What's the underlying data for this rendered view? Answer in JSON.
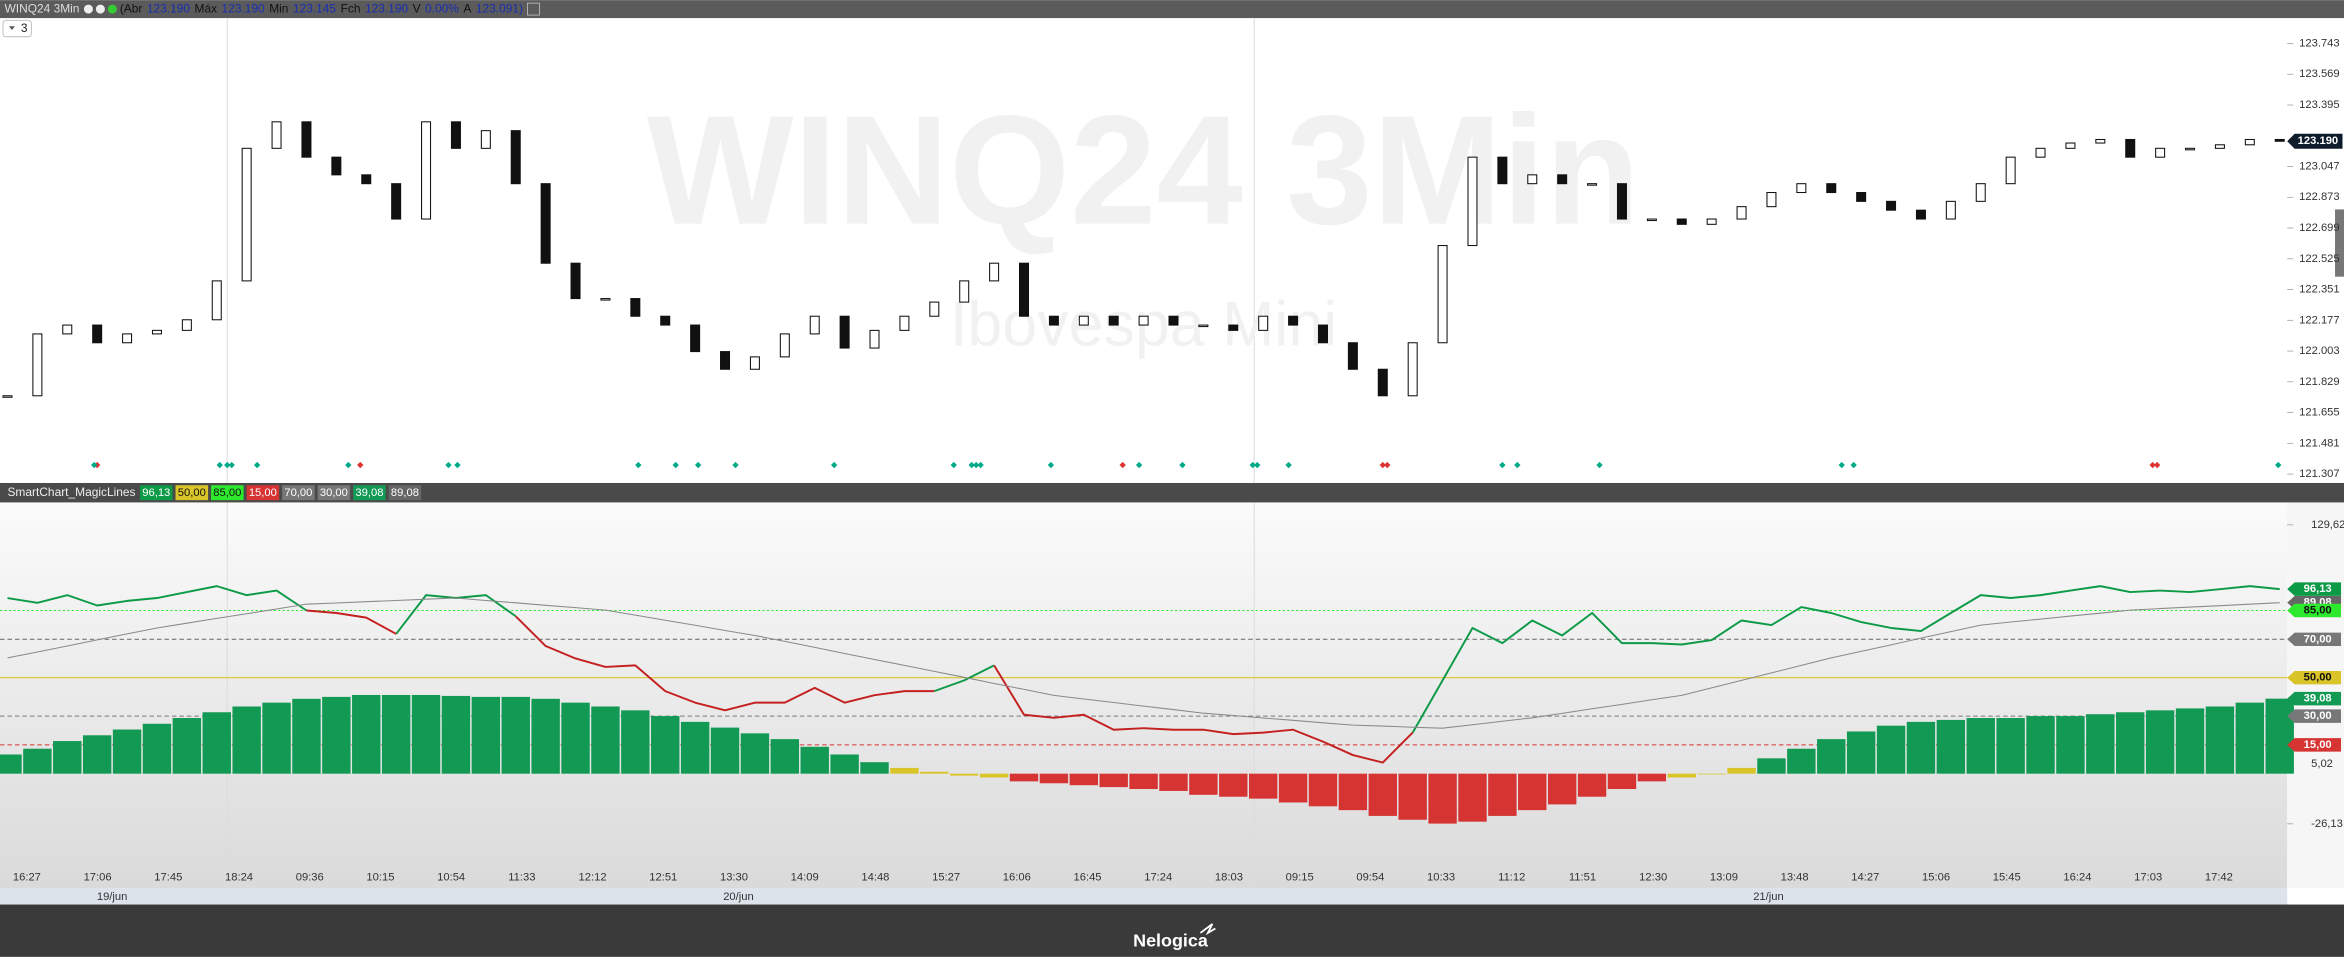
{
  "header": {
    "symbol": "WINQ24 3Min",
    "fields": [
      {
        "label": "(Abr",
        "value": "123.190"
      },
      {
        "label": "Máx",
        "value": "123.190"
      },
      {
        "label": "Min",
        "value": "123.145"
      },
      {
        "label": "Fch",
        "value": "123.190"
      },
      {
        "label": "V",
        "value": "0.00%"
      },
      {
        "label": "A",
        "value": "123.091)"
      }
    ]
  },
  "toolbar": {
    "period": "3"
  },
  "price_chart": {
    "type": "candlestick",
    "watermark": "WINQ24 3Min",
    "subtitle": "Ibovespa Mini",
    "close": [
      121.75,
      122.1,
      122.15,
      122.05,
      122.1,
      122.12,
      122.18,
      122.4,
      123.15,
      123.3,
      123.1,
      123.0,
      122.95,
      122.75,
      123.3,
      123.15,
      123.25,
      122.95,
      122.5,
      122.3,
      122.3,
      122.2,
      122.15,
      122.0,
      121.9,
      121.97,
      122.1,
      122.2,
      122.02,
      122.12,
      122.2,
      122.28,
      122.4,
      122.5,
      122.2,
      122.15,
      122.2,
      122.15,
      122.2,
      122.15,
      122.15,
      122.12,
      122.2,
      122.15,
      122.05,
      121.9,
      121.75,
      122.05,
      122.6,
      123.1,
      122.95,
      123.0,
      122.95,
      122.95,
      122.75,
      122.75,
      122.72,
      122.75,
      122.82,
      122.9,
      122.95,
      122.9,
      122.85,
      122.8,
      122.75,
      122.85,
      122.95,
      123.1,
      123.15,
      123.18,
      123.2,
      123.1,
      123.15,
      123.15,
      123.17,
      123.2,
      123.19
    ],
    "ylim": [
      121.265,
      123.887
    ],
    "yticks": [
      123.743,
      123.569,
      123.395,
      123.047,
      122.873,
      122.699,
      122.525,
      122.351,
      122.177,
      122.003,
      121.829,
      121.655,
      121.481,
      121.307
    ],
    "last_price": {
      "value": 123.19,
      "label": "123.190"
    },
    "up_color": "#ffffff",
    "down_color": "#111111"
  },
  "indicator": {
    "type": "line",
    "name": "SmartChart_MagicLines",
    "ylim": [
      -48.7,
      141.3
    ],
    "yticks": [
      {
        "value": 129.62,
        "label": "129,62"
      },
      {
        "value": 5.02,
        "label": "5,02"
      },
      {
        "value": -26.13,
        "label": "-26,13"
      }
    ],
    "readouts": [
      {
        "value": 96.13,
        "label": "96,13",
        "color": "#0c9a47",
        "text_color": "#ffffff"
      },
      {
        "value": 50,
        "label": "50,00",
        "color": "#d9c42a",
        "text_color": "#111111",
        "line": "solid"
      },
      {
        "value": 85,
        "label": "85,00",
        "color": "#2ee82e",
        "text_color": "#111111",
        "line": "dotted"
      },
      {
        "value": 15,
        "label": "15,00",
        "color": "#d63333",
        "text_color": "#ffffff",
        "line": "dashed"
      },
      {
        "value": 70,
        "label": "70,00",
        "color": "#777777",
        "text_color": "#ffffff",
        "line": "dashed"
      },
      {
        "value": 30,
        "label": "30,00",
        "color": "#777777",
        "text_color": "#ffffff",
        "line": "dashed"
      },
      {
        "value": 39.08,
        "label": "39,08",
        "color": "#129a55",
        "text_color": "#ffffff"
      },
      {
        "value": 89.08,
        "label": "89,08",
        "color": "#666666",
        "text_color": "#ffffff"
      }
    ],
    "histogram": [
      {
        "color": "#129a55",
        "values": [
          10,
          13,
          17,
          20,
          23,
          26,
          29,
          32,
          35,
          37,
          39,
          40,
          41,
          41,
          41,
          40.5,
          40,
          40,
          39,
          37,
          35,
          33,
          30,
          27,
          24,
          21,
          18,
          14,
          10,
          6,
          null,
          null,
          null,
          null,
          null,
          null,
          null,
          null,
          null,
          null,
          null,
          null,
          null,
          null,
          null,
          null,
          null,
          null,
          null,
          null,
          null,
          null,
          null,
          null,
          null,
          null,
          null,
          null,
          null,
          8,
          13,
          18,
          22,
          25,
          27,
          28,
          29,
          29,
          30,
          30,
          31,
          32,
          33,
          34,
          35,
          37,
          39.08
        ]
      },
      {
        "color": "#d9c42a",
        "values": [
          null,
          null,
          null,
          null,
          null,
          null,
          null,
          null,
          null,
          null,
          null,
          null,
          null,
          null,
          null,
          null,
          null,
          null,
          null,
          null,
          null,
          null,
          null,
          null,
          null,
          null,
          null,
          null,
          null,
          null,
          3,
          1,
          -1,
          -2,
          null,
          null,
          null,
          null,
          null,
          null,
          null,
          null,
          null,
          null,
          null,
          null,
          null,
          null,
          null,
          null,
          null,
          null,
          null,
          null,
          null,
          null,
          -2,
          0,
          3,
          null,
          null,
          null,
          null,
          null,
          null,
          null,
          null,
          null,
          null,
          null,
          null,
          null,
          null,
          null,
          null,
          null,
          null
        ]
      },
      {
        "color": "#d63333",
        "values": [
          null,
          null,
          null,
          null,
          null,
          null,
          null,
          null,
          null,
          null,
          null,
          null,
          null,
          null,
          null,
          null,
          null,
          null,
          null,
          null,
          null,
          null,
          null,
          null,
          null,
          null,
          null,
          null,
          null,
          null,
          null,
          null,
          null,
          null,
          -4,
          -5,
          -6,
          -7,
          -8,
          -9,
          -11,
          -12,
          -13,
          -15,
          -17,
          -19,
          -22,
          -24,
          -26,
          -25,
          -22,
          -19,
          -16,
          -12,
          -8,
          -4,
          null,
          null,
          null,
          null,
          null,
          null,
          null,
          null,
          null,
          null,
          null,
          null,
          null,
          null,
          null,
          null,
          null,
          null,
          null,
          null,
          null
        ]
      }
    ],
    "series": [
      {
        "color": "#0c9a47",
        "width": 1.3,
        "values": [
          91.5,
          89,
          93,
          87.6,
          90,
          91.5,
          94.6,
          97.7,
          93,
          95.4,
          85,
          null,
          null,
          72.8,
          93,
          91.5,
          93,
          82,
          null,
          null,
          null,
          null,
          null,
          null,
          null,
          null,
          null,
          null,
          null,
          null,
          null,
          43,
          48.6,
          56.4,
          null,
          null,
          null,
          null,
          null,
          null,
          null,
          null,
          null,
          null,
          null,
          null,
          null,
          21.4,
          48.6,
          75.9,
          68,
          79.8,
          72,
          83.7,
          68,
          68,
          67.3,
          69.6,
          79.8,
          77.4,
          86.8,
          83.7,
          79,
          75.9,
          74.3,
          83.7,
          93,
          91.5,
          93,
          95.4,
          97.7,
          94.6,
          95.4,
          94.6,
          96.1,
          97.7,
          96.13
        ]
      },
      {
        "color": "#c42020",
        "width": 1.3,
        "values": [
          null,
          null,
          null,
          null,
          null,
          null,
          null,
          null,
          null,
          null,
          85,
          83.7,
          81.3,
          72.8,
          null,
          null,
          null,
          82,
          66.5,
          60,
          55.6,
          56.4,
          43,
          37,
          33,
          37,
          37,
          44.7,
          37,
          40.9,
          43,
          43,
          null,
          56.4,
          30.7,
          29.1,
          30.7,
          22.9,
          23.7,
          22.9,
          22.9,
          20.6,
          21.4,
          22.9,
          16.7,
          9.7,
          5.8,
          21.4,
          null,
          null,
          null,
          null,
          null,
          null,
          null,
          null,
          null,
          null,
          null,
          null,
          null,
          null,
          null,
          null,
          null,
          null,
          null,
          null,
          null,
          null,
          null,
          null,
          null,
          null,
          null,
          null,
          null
        ]
      },
      {
        "color": "#8a8a8a",
        "width": 0.7,
        "values": [
          60.3,
          63.4,
          66.5,
          69.7,
          72.8,
          75.9,
          78.4,
          80.9,
          83.3,
          85.8,
          88.3,
          88.9,
          89.6,
          90.2,
          90.9,
          91.5,
          90.2,
          89.0,
          87.7,
          86.5,
          85.2,
          82.6,
          79.9,
          77.3,
          74.6,
          72.0,
          68.9,
          65.8,
          62.6,
          59.5,
          56.4,
          53.3,
          50.2,
          47.0,
          43.9,
          40.8,
          38.9,
          37.1,
          35.2,
          33.4,
          31.5,
          30.3,
          29.0,
          27.8,
          26.5,
          25.3,
          24.8,
          24.2,
          23.7,
          25.5,
          27.3,
          29.1,
          31.4,
          33.8,
          36.1,
          38.5,
          40.8,
          44.7,
          48.6,
          52.5,
          56.4,
          60.3,
          63.7,
          67.1,
          70.6,
          74.0,
          77.4,
          79.0,
          80.5,
          82.1,
          83.6,
          85.2,
          86.0,
          86.8,
          87.5,
          88.3,
          89.08
        ]
      }
    ]
  },
  "time_axis": {
    "labels": [
      "16:27",
      "17:06",
      "17:45",
      "18:24",
      "09:36",
      "10:15",
      "10:54",
      "11:33",
      "12:12",
      "12:51",
      "13:30",
      "14:09",
      "14:48",
      "15:27",
      "16:06",
      "16:45",
      "17:24",
      "18:03",
      "09:15",
      "09:54",
      "10:33",
      "11:12",
      "11:51",
      "12:30",
      "13:09",
      "13:48",
      "14:27",
      "15:06",
      "15:45",
      "16:24",
      "17:03",
      "17:42"
    ],
    "dates": [
      "19/jun",
      "20/jun",
      "21/jun"
    ]
  },
  "footer": {
    "brand": "Nelogica"
  }
}
